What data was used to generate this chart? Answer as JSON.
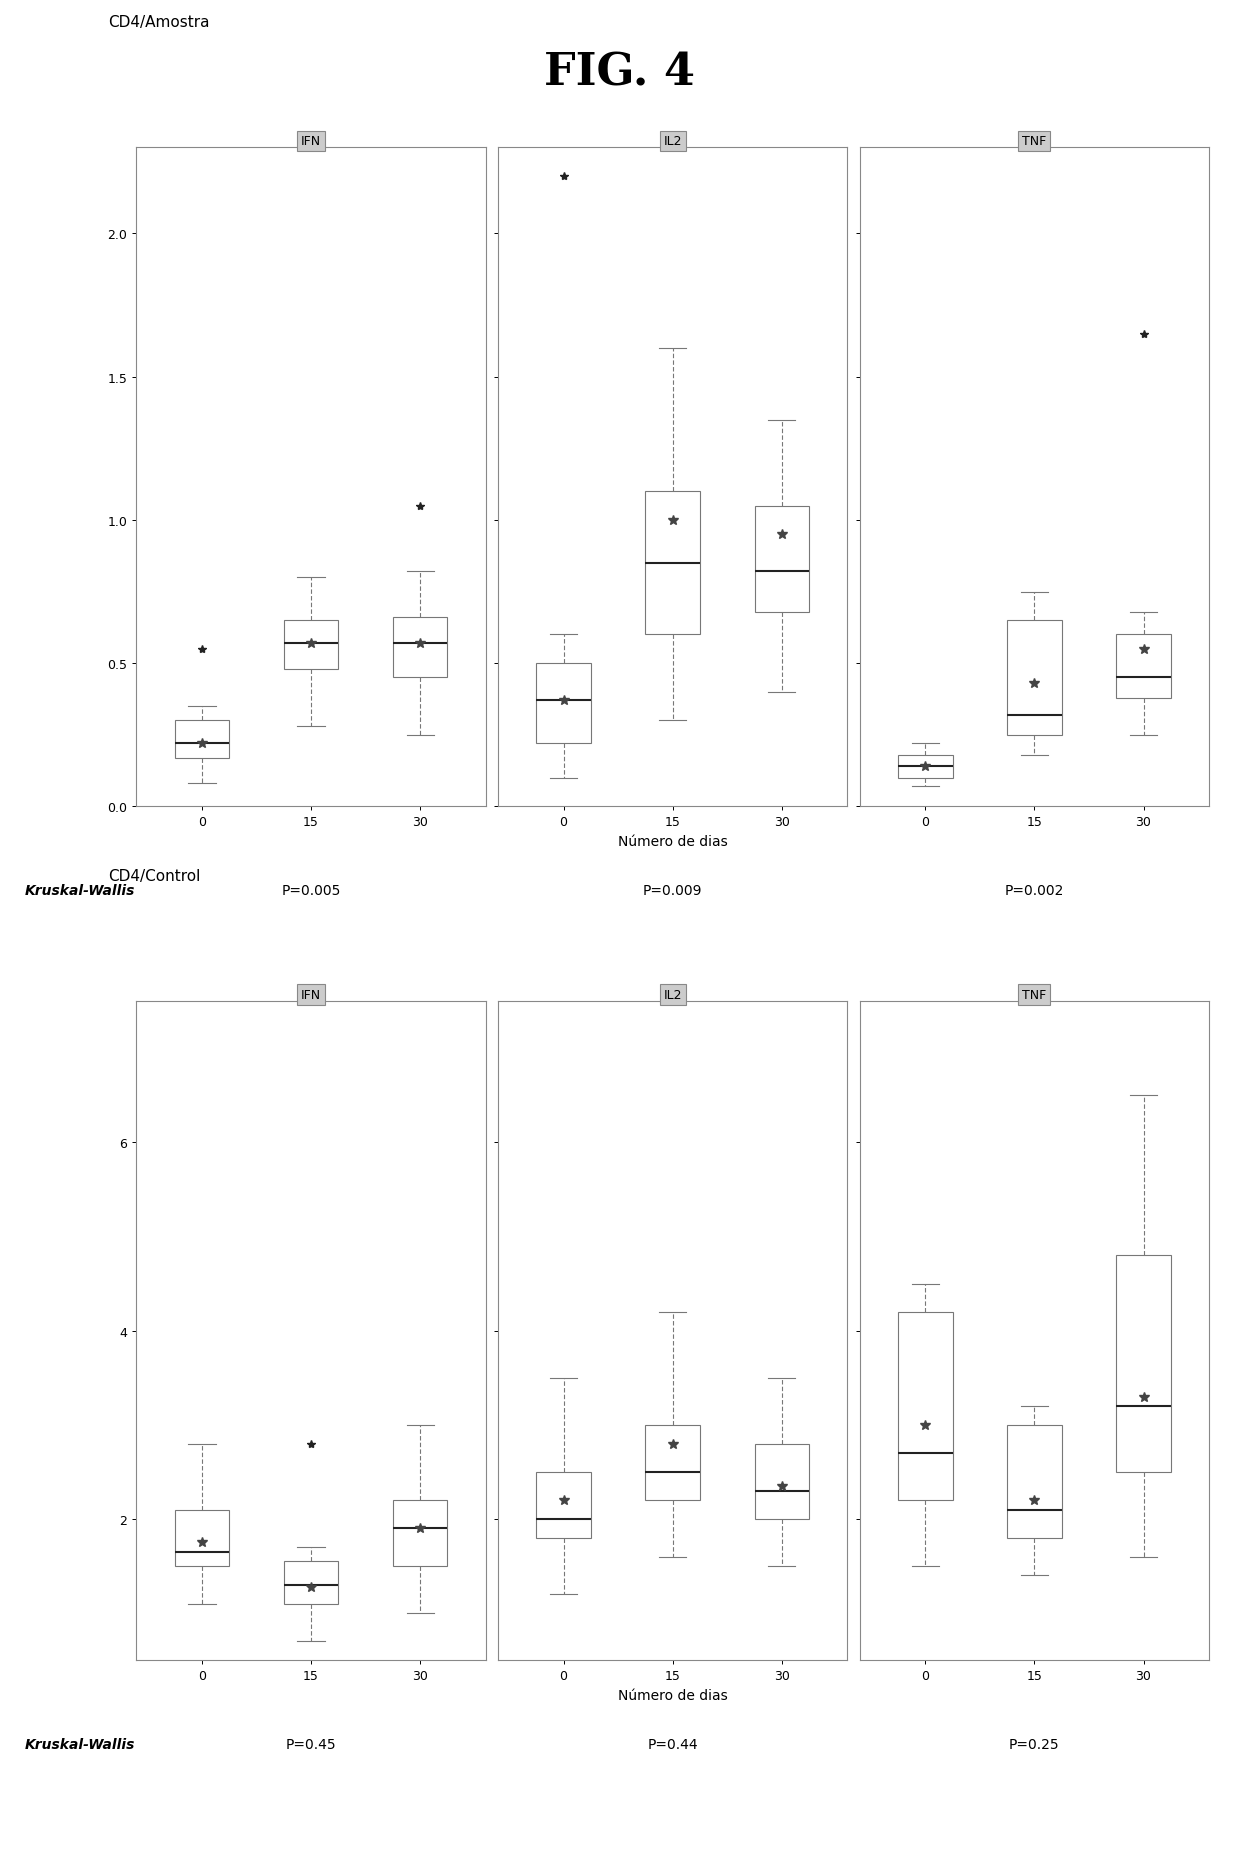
{
  "fig_title": "FIG. 4",
  "plot1_title": "CD4/Amostra",
  "plot2_title": "CD4/Control",
  "facet_labels": [
    "IFN",
    "IL2",
    "TNF"
  ],
  "x_labels": [
    "0",
    "15",
    "30"
  ],
  "xlabel": "Número de dias",
  "kruskal_label": "Kruskal-Wallis",
  "plot1_pvalues": [
    "P=0.005",
    "P=0.009",
    "P=0.002"
  ],
  "plot2_pvalues": [
    "P=0.45",
    "P=0.44",
    "P=0.25"
  ],
  "plot1_data": {
    "IFN": {
      "0": {
        "q1": 0.17,
        "median": 0.22,
        "q3": 0.3,
        "whislo": 0.08,
        "whishi": 0.35,
        "mean": 0.22,
        "fliers": [
          0.55
        ]
      },
      "15": {
        "q1": 0.48,
        "median": 0.57,
        "q3": 0.65,
        "whislo": 0.28,
        "whishi": 0.8,
        "mean": 0.57,
        "fliers": []
      },
      "30": {
        "q1": 0.45,
        "median": 0.57,
        "q3": 0.66,
        "whislo": 0.25,
        "whishi": 0.82,
        "mean": 0.57,
        "fliers": [
          1.05
        ]
      }
    },
    "IL2": {
      "0": {
        "q1": 0.22,
        "median": 0.37,
        "q3": 0.5,
        "whislo": 0.1,
        "whishi": 0.6,
        "mean": 0.37,
        "fliers": [
          2.2
        ]
      },
      "15": {
        "q1": 0.6,
        "median": 0.85,
        "q3": 1.1,
        "whislo": 0.3,
        "whishi": 1.6,
        "mean": 1.0,
        "fliers": []
      },
      "30": {
        "q1": 0.68,
        "median": 0.82,
        "q3": 1.05,
        "whislo": 0.4,
        "whishi": 1.35,
        "mean": 0.95,
        "fliers": []
      }
    },
    "TNF": {
      "0": {
        "q1": 0.1,
        "median": 0.14,
        "q3": 0.18,
        "whislo": 0.07,
        "whishi": 0.22,
        "mean": 0.14,
        "fliers": []
      },
      "15": {
        "q1": 0.25,
        "median": 0.32,
        "q3": 0.65,
        "whislo": 0.18,
        "whishi": 0.75,
        "mean": 0.43,
        "fliers": []
      },
      "30": {
        "q1": 0.38,
        "median": 0.45,
        "q3": 0.6,
        "whislo": 0.25,
        "whishi": 0.68,
        "mean": 0.55,
        "fliers": [
          1.65
        ]
      }
    }
  },
  "plot2_data": {
    "IFN": {
      "0": {
        "q1": 1.5,
        "median": 1.65,
        "q3": 2.1,
        "whislo": 1.1,
        "whishi": 2.8,
        "mean": 1.75,
        "fliers": []
      },
      "15": {
        "q1": 1.1,
        "median": 1.3,
        "q3": 1.55,
        "whislo": 0.7,
        "whishi": 1.7,
        "mean": 1.28,
        "fliers": [
          2.8
        ]
      },
      "30": {
        "q1": 1.5,
        "median": 1.9,
        "q3": 2.2,
        "whislo": 1.0,
        "whishi": 3.0,
        "mean": 1.9,
        "fliers": []
      }
    },
    "IL2": {
      "0": {
        "q1": 1.8,
        "median": 2.0,
        "q3": 2.5,
        "whislo": 1.2,
        "whishi": 3.5,
        "mean": 2.2,
        "fliers": []
      },
      "15": {
        "q1": 2.2,
        "median": 2.5,
        "q3": 3.0,
        "whislo": 1.6,
        "whishi": 4.2,
        "mean": 2.8,
        "fliers": []
      },
      "30": {
        "q1": 2.0,
        "median": 2.3,
        "q3": 2.8,
        "whislo": 1.5,
        "whishi": 3.5,
        "mean": 2.35,
        "fliers": []
      }
    },
    "TNF": {
      "0": {
        "q1": 2.2,
        "median": 2.7,
        "q3": 4.2,
        "whislo": 1.5,
        "whishi": 4.5,
        "mean": 3.0,
        "fliers": []
      },
      "15": {
        "q1": 1.8,
        "median": 2.1,
        "q3": 3.0,
        "whislo": 1.4,
        "whishi": 3.2,
        "mean": 2.2,
        "fliers": []
      },
      "30": {
        "q1": 2.5,
        "median": 3.2,
        "q3": 4.8,
        "whislo": 1.6,
        "whishi": 6.5,
        "mean": 3.3,
        "fliers": []
      }
    }
  },
  "plot1_ylim": [
    0.0,
    2.3
  ],
  "plot1_yticks": [
    0.0,
    0.5,
    1.0,
    1.5,
    2.0
  ],
  "plot2_ylim": [
    0.5,
    7.5
  ],
  "plot2_yticks": [
    2,
    4,
    6
  ],
  "facet_bg_color": "#cccccc",
  "facet_border_color": "#888888",
  "box_facecolor": "white",
  "box_edgecolor": "#777777",
  "median_color": "#222222",
  "whisker_color": "#777777",
  "flier_color": "#222222",
  "mean_marker_color": "#444444",
  "background_color": "white",
  "title_fontsize": 32,
  "subtitle_fontsize": 11,
  "label_fontsize": 10,
  "tick_fontsize": 9,
  "kruskal_fontsize": 10,
  "pvalue_fontsize": 10,
  "facet_label_fontsize": 9
}
